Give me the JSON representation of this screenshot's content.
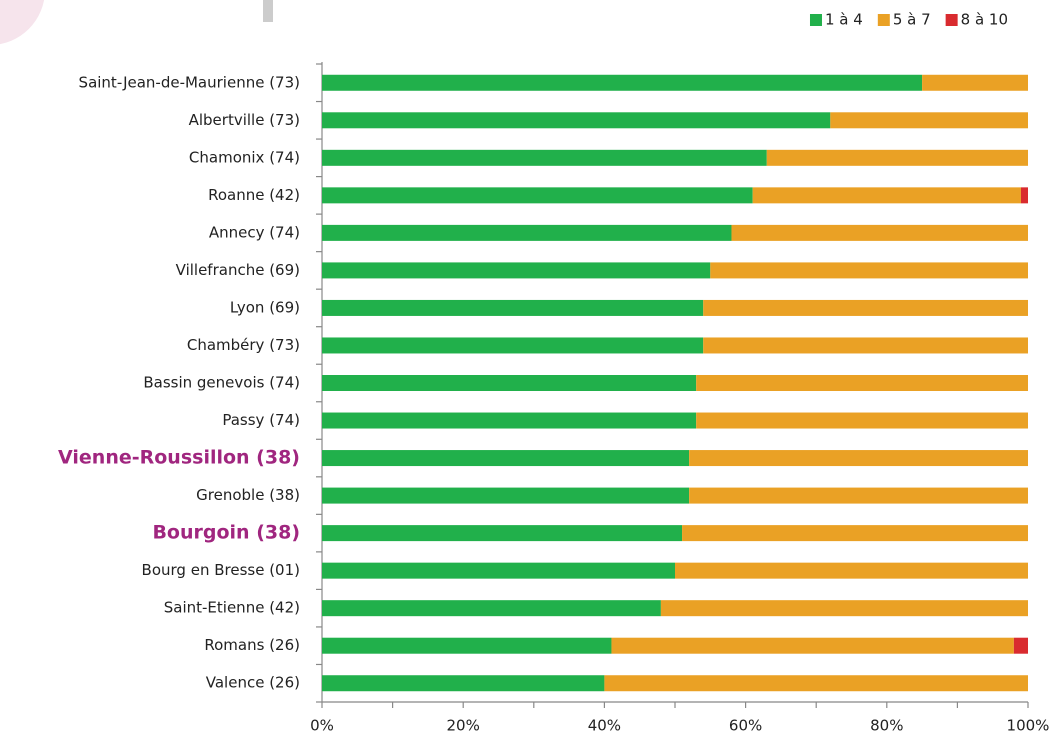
{
  "chart_data": {
    "type": "stacked-bar-horizontal",
    "categories": [
      "Saint-Jean-de-Maurienne (73)",
      "Albertville (73)",
      "Chamonix (74)",
      "Roanne (42)",
      "Annecy (74)",
      "Villefranche (69)",
      "Lyon (69)",
      "Chambéry (73)",
      "Bassin genevois (74)",
      "Passy (74)",
      "Vienne-Roussillon (38)",
      "Grenoble (38)",
      "Bourgoin (38)",
      "Bourg en Bresse (01)",
      "Saint-Etienne (42)",
      "Romans (26)",
      "Valence (26)"
    ],
    "series": [
      {
        "name": "1 à 4",
        "color": "#21b04b",
        "values": [
          85,
          72,
          63,
          61,
          58,
          55,
          54,
          54,
          53,
          53,
          52,
          52,
          51,
          50,
          48,
          41,
          40
        ]
      },
      {
        "name": "5 à 7",
        "color": "#eaa125",
        "values": [
          15,
          28,
          37,
          38,
          42,
          45,
          46,
          46,
          47,
          47,
          48,
          48,
          49,
          50,
          52,
          57,
          60
        ]
      },
      {
        "name": "8 à 10",
        "color": "#d92b2f",
        "values": [
          0,
          0,
          0,
          1,
          0,
          0,
          0,
          0,
          0,
          0,
          0,
          0,
          0,
          0,
          0,
          2,
          0
        ]
      }
    ],
    "xlim": [
      0,
      100
    ],
    "xticks": [
      {
        "value": 0,
        "label": "0%"
      },
      {
        "value": 20,
        "label": "20%"
      },
      {
        "value": 40,
        "label": "40%"
      },
      {
        "value": 60,
        "label": "60%"
      },
      {
        "value": 80,
        "label": "80%"
      },
      {
        "value": 100,
        "label": "100%"
      }
    ],
    "xminorticks": [
      10,
      30,
      50,
      70,
      90
    ],
    "legend": "top-right",
    "highlight": {
      "indices": [
        10,
        12
      ],
      "color": "#a0267f"
    }
  }
}
